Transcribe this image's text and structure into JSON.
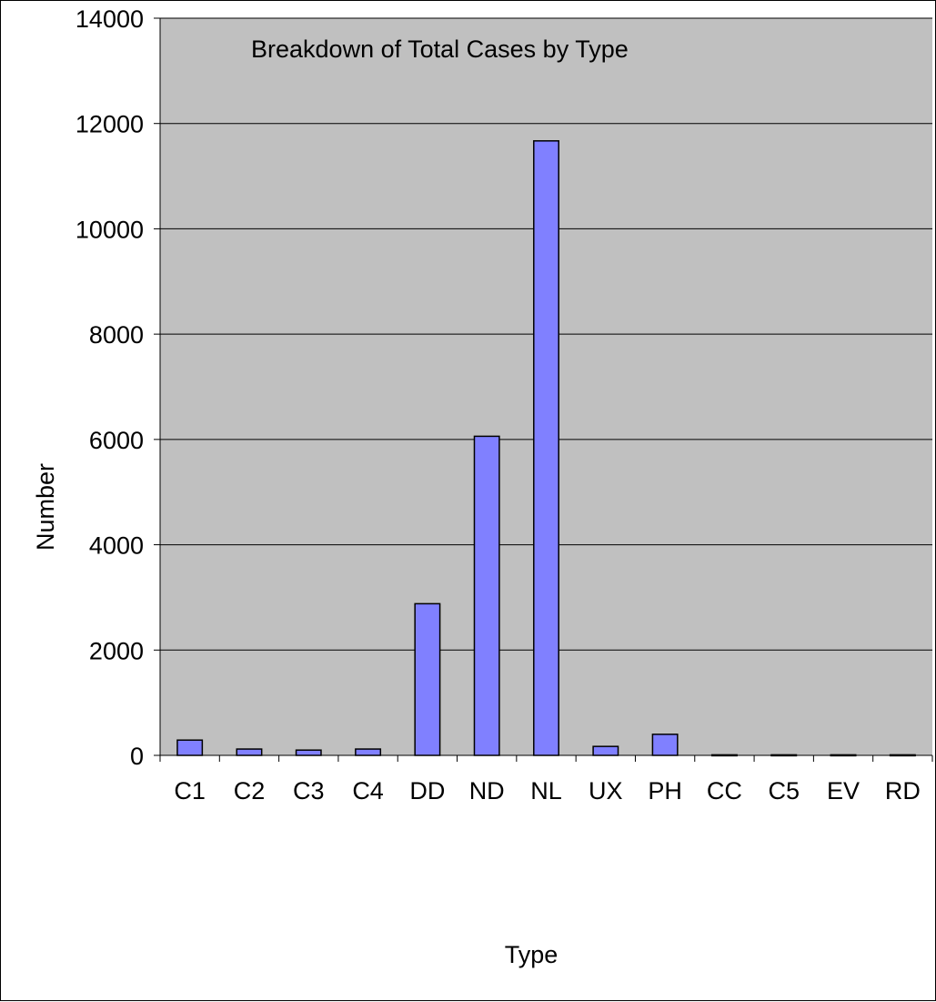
{
  "chart_data": {
    "type": "bar",
    "title": "Breakdown of Total Cases by Type",
    "xlabel": "Type",
    "ylabel": "Number",
    "categories": [
      "C1",
      "C2",
      "C3",
      "C4",
      "DD",
      "ND",
      "NL",
      "UX",
      "PH",
      "CC",
      "C5",
      "EV",
      "RD"
    ],
    "values": [
      290,
      120,
      100,
      120,
      2880,
      6060,
      11670,
      170,
      400,
      10,
      10,
      10,
      10
    ],
    "ylim": [
      0,
      14000
    ],
    "yticks": [
      "0",
      "2000",
      "4000",
      "6000",
      "8000",
      "10000",
      "12000",
      "14000"
    ],
    "grid": true,
    "legend": "none",
    "colors": {
      "bar_fill": "#8080ff",
      "bar_stroke": "#000000",
      "plot_background": "#c0c0c0",
      "gridline": "#000000"
    }
  }
}
